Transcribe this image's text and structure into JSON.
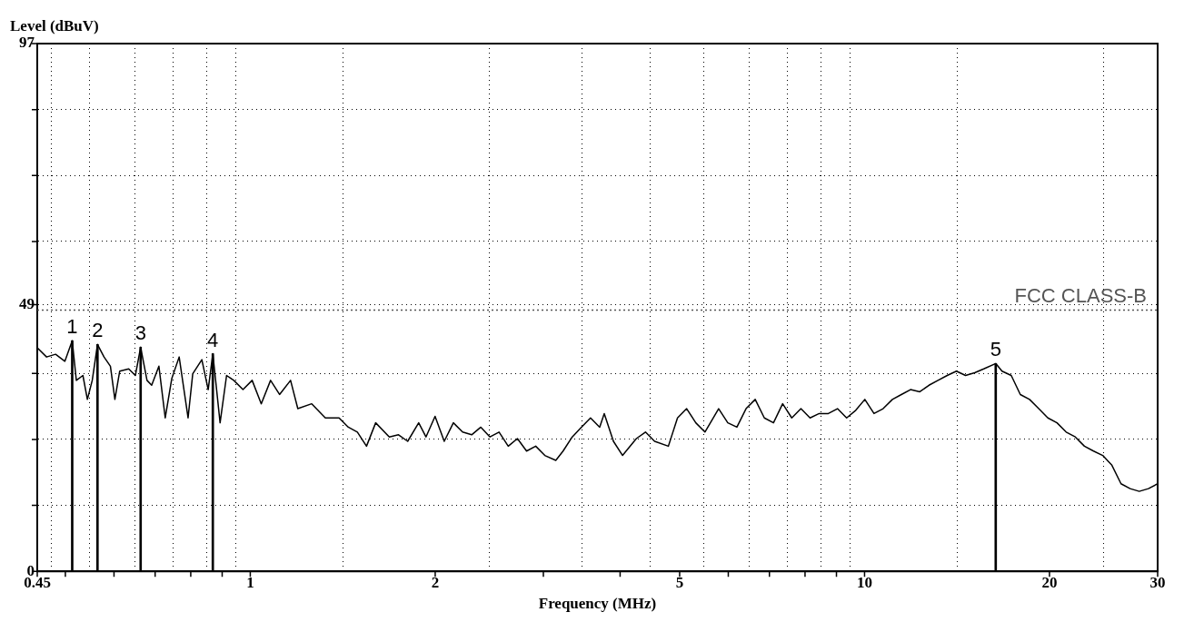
{
  "chart_data": {
    "type": "line",
    "xlabel": "Frequency (MHz)",
    "ylabel": "Level (dBuV)",
    "log": "x",
    "xlim": [
      0.45,
      30
    ],
    "xticks": [
      0.45,
      {
        "value": 0.5,
        "label": null
      },
      {
        "value": 0.6,
        "label": null
      },
      {
        "value": 0.7,
        "label": null
      },
      {
        "value": 0.8,
        "label": null
      },
      {
        "value": 0.9,
        "label": null
      },
      1,
      2,
      {
        "value": 3,
        "label": null
      },
      {
        "value": 4,
        "label": null
      },
      5,
      {
        "value": 6,
        "label": null
      },
      {
        "value": 7,
        "label": null
      },
      {
        "value": 8,
        "label": null
      },
      {
        "value": 9,
        "label": null
      },
      10,
      20,
      30
    ],
    "ylim": [
      0,
      97
    ],
    "yticks": [
      0,
      {
        "value": 12.125,
        "label": null
      },
      {
        "value": 24.25,
        "label": null
      },
      {
        "value": 36.375,
        "label": null
      },
      49,
      {
        "value": 60.625,
        "label": null
      },
      {
        "value": 72.75,
        "label": null
      },
      {
        "value": 84.875,
        "label": null
      },
      97
    ],
    "grid": true,
    "legend": false,
    "marker": "none",
    "line_style": "solid",
    "ref_lines": [
      {
        "axis": "y",
        "value": 48,
        "label": "FCC CLASS-B",
        "color": "#555555",
        "line_style": "dotted"
      }
    ],
    "series": [
      {
        "color": "#000000",
        "x": [
          0.45,
          0.466,
          0.482,
          0.499,
          0.513,
          0.521,
          0.534,
          0.543,
          0.553,
          0.564,
          0.578,
          0.592,
          0.602,
          0.613,
          0.634,
          0.65,
          0.663,
          0.679,
          0.691,
          0.71,
          0.727,
          0.745,
          0.766,
          0.792,
          0.806,
          0.834,
          0.854,
          0.869,
          0.893,
          0.915,
          0.94,
          0.973,
          1.007,
          1.042,
          1.079,
          1.116,
          1.163,
          1.195,
          1.259,
          1.325,
          1.395,
          1.444,
          1.494,
          1.546,
          1.6,
          1.684,
          1.743,
          1.804,
          1.88,
          1.932,
          1.999,
          2.069,
          2.141,
          2.216,
          2.293,
          2.373,
          2.456,
          2.541,
          2.63,
          2.722,
          2.817,
          2.915,
          3.016,
          3.143,
          3.23,
          3.343,
          3.46,
          3.58,
          3.705,
          3.769,
          3.901,
          4.037,
          4.251,
          4.399,
          4.552,
          4.793,
          4.96,
          5.133,
          5.312,
          5.497,
          5.787,
          5.989,
          6.197,
          6.413,
          6.637,
          6.868,
          7.108,
          7.356,
          7.612,
          7.878,
          8.152,
          8.437,
          8.731,
          9.035,
          9.35,
          9.676,
          10.01,
          10.36,
          10.72,
          11.1,
          11.48,
          11.88,
          12.3,
          12.73,
          13.17,
          13.63,
          14.11,
          14.6,
          15.11,
          15.63,
          16.35,
          16.74,
          17.33,
          17.93,
          18.56,
          19.21,
          19.88,
          20.57,
          21.29,
          22.03,
          22.8,
          23.59,
          24.42,
          25.27,
          26.15,
          27.06,
          28.0,
          28.98,
          30.0
        ],
        "values": [
          41.1,
          39.4,
          39.9,
          38.6,
          42.4,
          35.1,
          36.0,
          31.6,
          35.1,
          41.7,
          39.4,
          37.7,
          31.6,
          36.8,
          37.2,
          36.0,
          41.2,
          35.1,
          34.2,
          37.7,
          28.2,
          35.4,
          39.4,
          28.2,
          36.3,
          38.9,
          33.4,
          40.0,
          27.3,
          36.0,
          35.1,
          33.4,
          35.1,
          30.8,
          35.1,
          32.5,
          35.1,
          29.9,
          30.8,
          28.2,
          28.2,
          26.5,
          25.6,
          23.0,
          27.3,
          24.7,
          25.1,
          23.9,
          27.3,
          24.7,
          28.5,
          23.9,
          27.3,
          25.6,
          25.1,
          26.5,
          24.7,
          25.6,
          23.0,
          24.4,
          22.1,
          23.0,
          21.3,
          20.4,
          22.1,
          24.7,
          26.5,
          28.2,
          26.5,
          29.0,
          23.9,
          21.3,
          24.4,
          25.6,
          23.9,
          23.0,
          28.2,
          29.9,
          27.3,
          25.6,
          29.9,
          27.3,
          26.5,
          29.9,
          31.6,
          28.2,
          27.3,
          30.8,
          28.2,
          29.9,
          28.2,
          29.0,
          29.0,
          29.9,
          28.2,
          29.6,
          31.6,
          29.0,
          29.9,
          31.6,
          32.5,
          33.4,
          33.0,
          34.2,
          35.1,
          36.0,
          36.8,
          36.0,
          36.5,
          37.2,
          38.2,
          36.8,
          36.0,
          32.5,
          31.6,
          29.9,
          28.2,
          27.3,
          25.6,
          24.7,
          23.0,
          22.1,
          21.3,
          19.5,
          16.1,
          15.2,
          14.7,
          15.2,
          16.1
        ]
      },
      {
        "type": "bar",
        "color": "#000000",
        "x": [
          0.513,
          0.564,
          0.663,
          0.869,
          16.35
        ],
        "values": [
          42.4,
          41.7,
          41.2,
          40.0,
          38.2
        ]
      }
    ],
    "annotations": [
      {
        "text": "1",
        "x": 0.513,
        "y": 42.4
      },
      {
        "text": "2",
        "x": 0.564,
        "y": 41.7
      },
      {
        "text": "3",
        "x": 0.663,
        "y": 41.2
      },
      {
        "text": "4",
        "x": 0.869,
        "y": 40.0
      },
      {
        "text": "5",
        "x": 16.35,
        "y": 38.2
      }
    ]
  }
}
